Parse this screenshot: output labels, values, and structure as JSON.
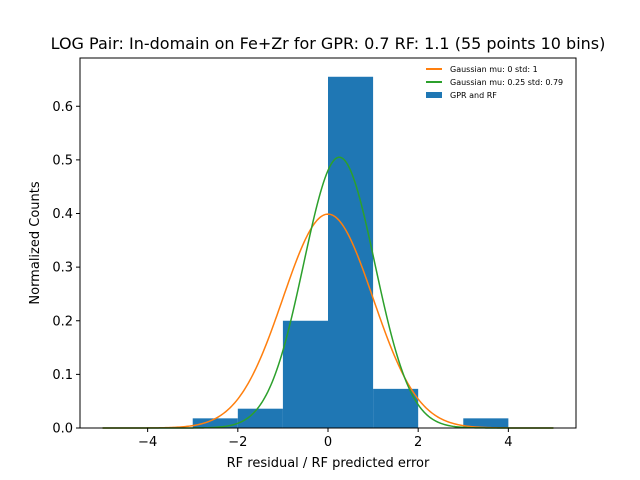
{
  "chart_data": {
    "type": "bar",
    "title": "LOG Pair: In-domain on Fe+Zr for GPR: 0.7 RF: 1.1 (55 points 10 bins)",
    "xlabel": "RF residual / RF predicted error",
    "ylabel": "Normalized Counts",
    "xlim": [
      -5.5,
      5.5
    ],
    "ylim": [
      0,
      0.69
    ],
    "x_ticks": [
      -4,
      -2,
      0,
      2,
      4
    ],
    "x_tick_labels": [
      "−4",
      "−2",
      "0",
      "2",
      "4"
    ],
    "y_ticks": [
      0.0,
      0.1,
      0.2,
      0.3,
      0.4,
      0.5,
      0.6
    ],
    "y_tick_labels": [
      "0.0",
      "0.1",
      "0.2",
      "0.3",
      "0.4",
      "0.5",
      "0.6"
    ],
    "legend_position": "top-right",
    "grid": false,
    "histogram": {
      "name": "GPR and RF",
      "color": "#1f77b4",
      "bins": [
        {
          "x0": -3,
          "x1": -2,
          "value": 0.018
        },
        {
          "x0": -2,
          "x1": -1,
          "value": 0.036
        },
        {
          "x0": -1,
          "x1": 0,
          "value": 0.2
        },
        {
          "x0": 0,
          "x1": 1,
          "value": 0.655
        },
        {
          "x0": 1,
          "x1": 2,
          "value": 0.073
        },
        {
          "x0": 2,
          "x1": 3,
          "value": 0.0
        },
        {
          "x0": 3,
          "x1": 4,
          "value": 0.018
        }
      ]
    },
    "series": [
      {
        "name": "Gaussian mu: 0 std: 1",
        "type": "line",
        "color": "#ff7f0e",
        "mu": 0,
        "std": 1,
        "x_range": [
          -5,
          5
        ]
      },
      {
        "name": "Gaussian mu: 0.25 std: 0.79",
        "type": "line",
        "color": "#2ca02c",
        "mu": 0.25,
        "std": 0.79,
        "x_range": [
          -5,
          5
        ]
      }
    ]
  }
}
